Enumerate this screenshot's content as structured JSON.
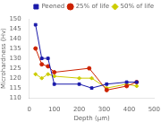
{
  "chart_data": {
    "type": "line",
    "xlabel": "Depth (μm)",
    "ylabel": "Microhardness (Hv)",
    "series": [
      {
        "name": "Peened",
        "color": "#1a1aaa",
        "marker": "square",
        "x": [
          25,
          50,
          75,
          100,
          200,
          250,
          310,
          390,
          430
        ],
        "values": [
          147,
          130,
          130,
          117,
          117,
          115,
          117,
          118,
          118
        ]
      },
      {
        "name": "25% of life",
        "color": "#cc2200",
        "marker": "circle",
        "x": [
          25,
          50,
          75,
          100,
          240,
          310,
          390,
          430
        ],
        "values": [
          135,
          127,
          126,
          123,
          125,
          114,
          116,
          118
        ]
      },
      {
        "name": "50% of life",
        "color": "#cccc00",
        "marker": "diamond",
        "x": [
          25,
          50,
          75,
          100,
          200,
          250,
          310,
          390,
          430
        ],
        "values": [
          122,
          120,
          122,
          121,
          120,
          120,
          115,
          117,
          116
        ]
      }
    ],
    "xlim": [
      0,
      500
    ],
    "ylim": [
      110,
      150
    ],
    "xticks": [
      0,
      100,
      200,
      300,
      400,
      500
    ],
    "yticks": [
      110,
      115,
      120,
      125,
      130,
      135,
      140,
      145,
      150
    ],
    "grid": false,
    "legend": "upper right"
  }
}
